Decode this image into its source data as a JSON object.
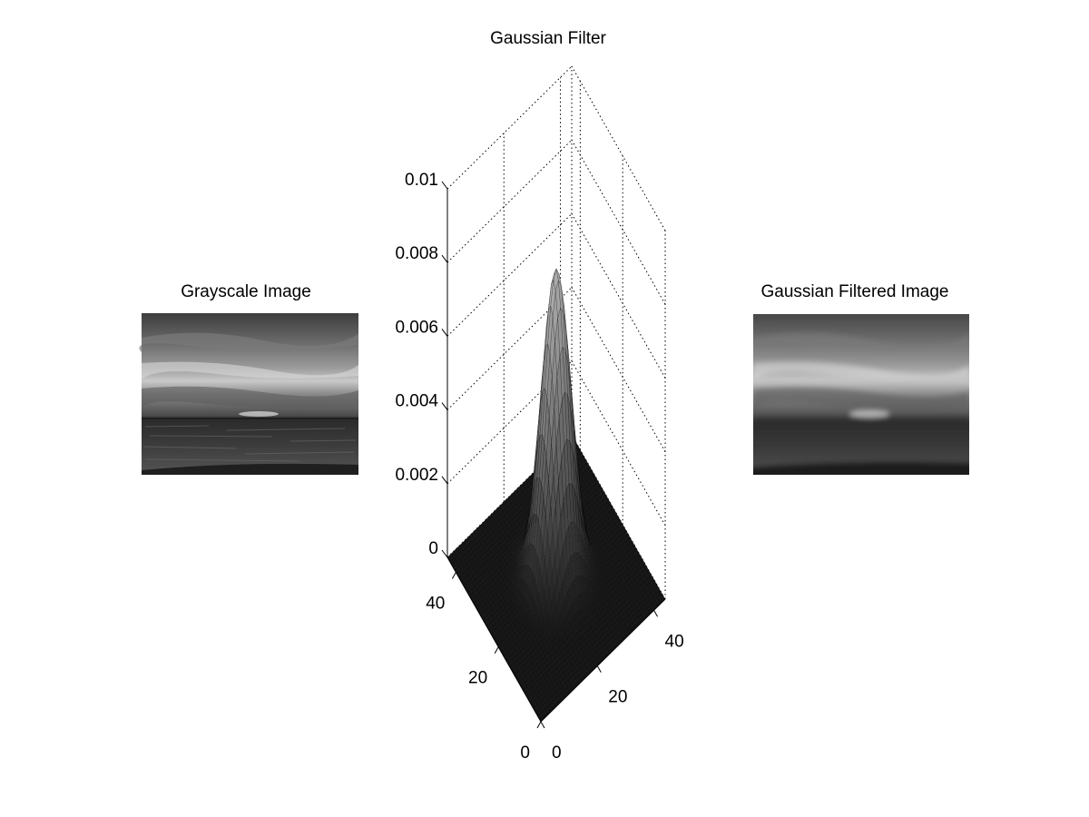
{
  "colors": {
    "background": "#ffffff",
    "axis": "#000000",
    "grid": "#000000"
  },
  "chart_data": [
    {
      "type": "image",
      "title": "Grayscale Image",
      "content": "grayscale photo of sunset over the sea"
    },
    {
      "type": "surface",
      "title": "Gaussian Filter",
      "grid": true,
      "x_ticks": [
        "0",
        "20",
        "40"
      ],
      "y_ticks": [
        "0",
        "20",
        "40"
      ],
      "z_ticks": [
        "0",
        "0.002",
        "0.004",
        "0.006",
        "0.008",
        "0.01"
      ],
      "xlim": [
        0,
        44
      ],
      "ylim": [
        0,
        44
      ],
      "zlim": [
        0,
        0.01
      ],
      "peak": 0.0084,
      "center": [
        22,
        22
      ],
      "sigma": 4.3
    },
    {
      "type": "image",
      "title": "Gaussian Filtered Image",
      "content": "blurred grayscale photo of sunset over the sea"
    }
  ]
}
